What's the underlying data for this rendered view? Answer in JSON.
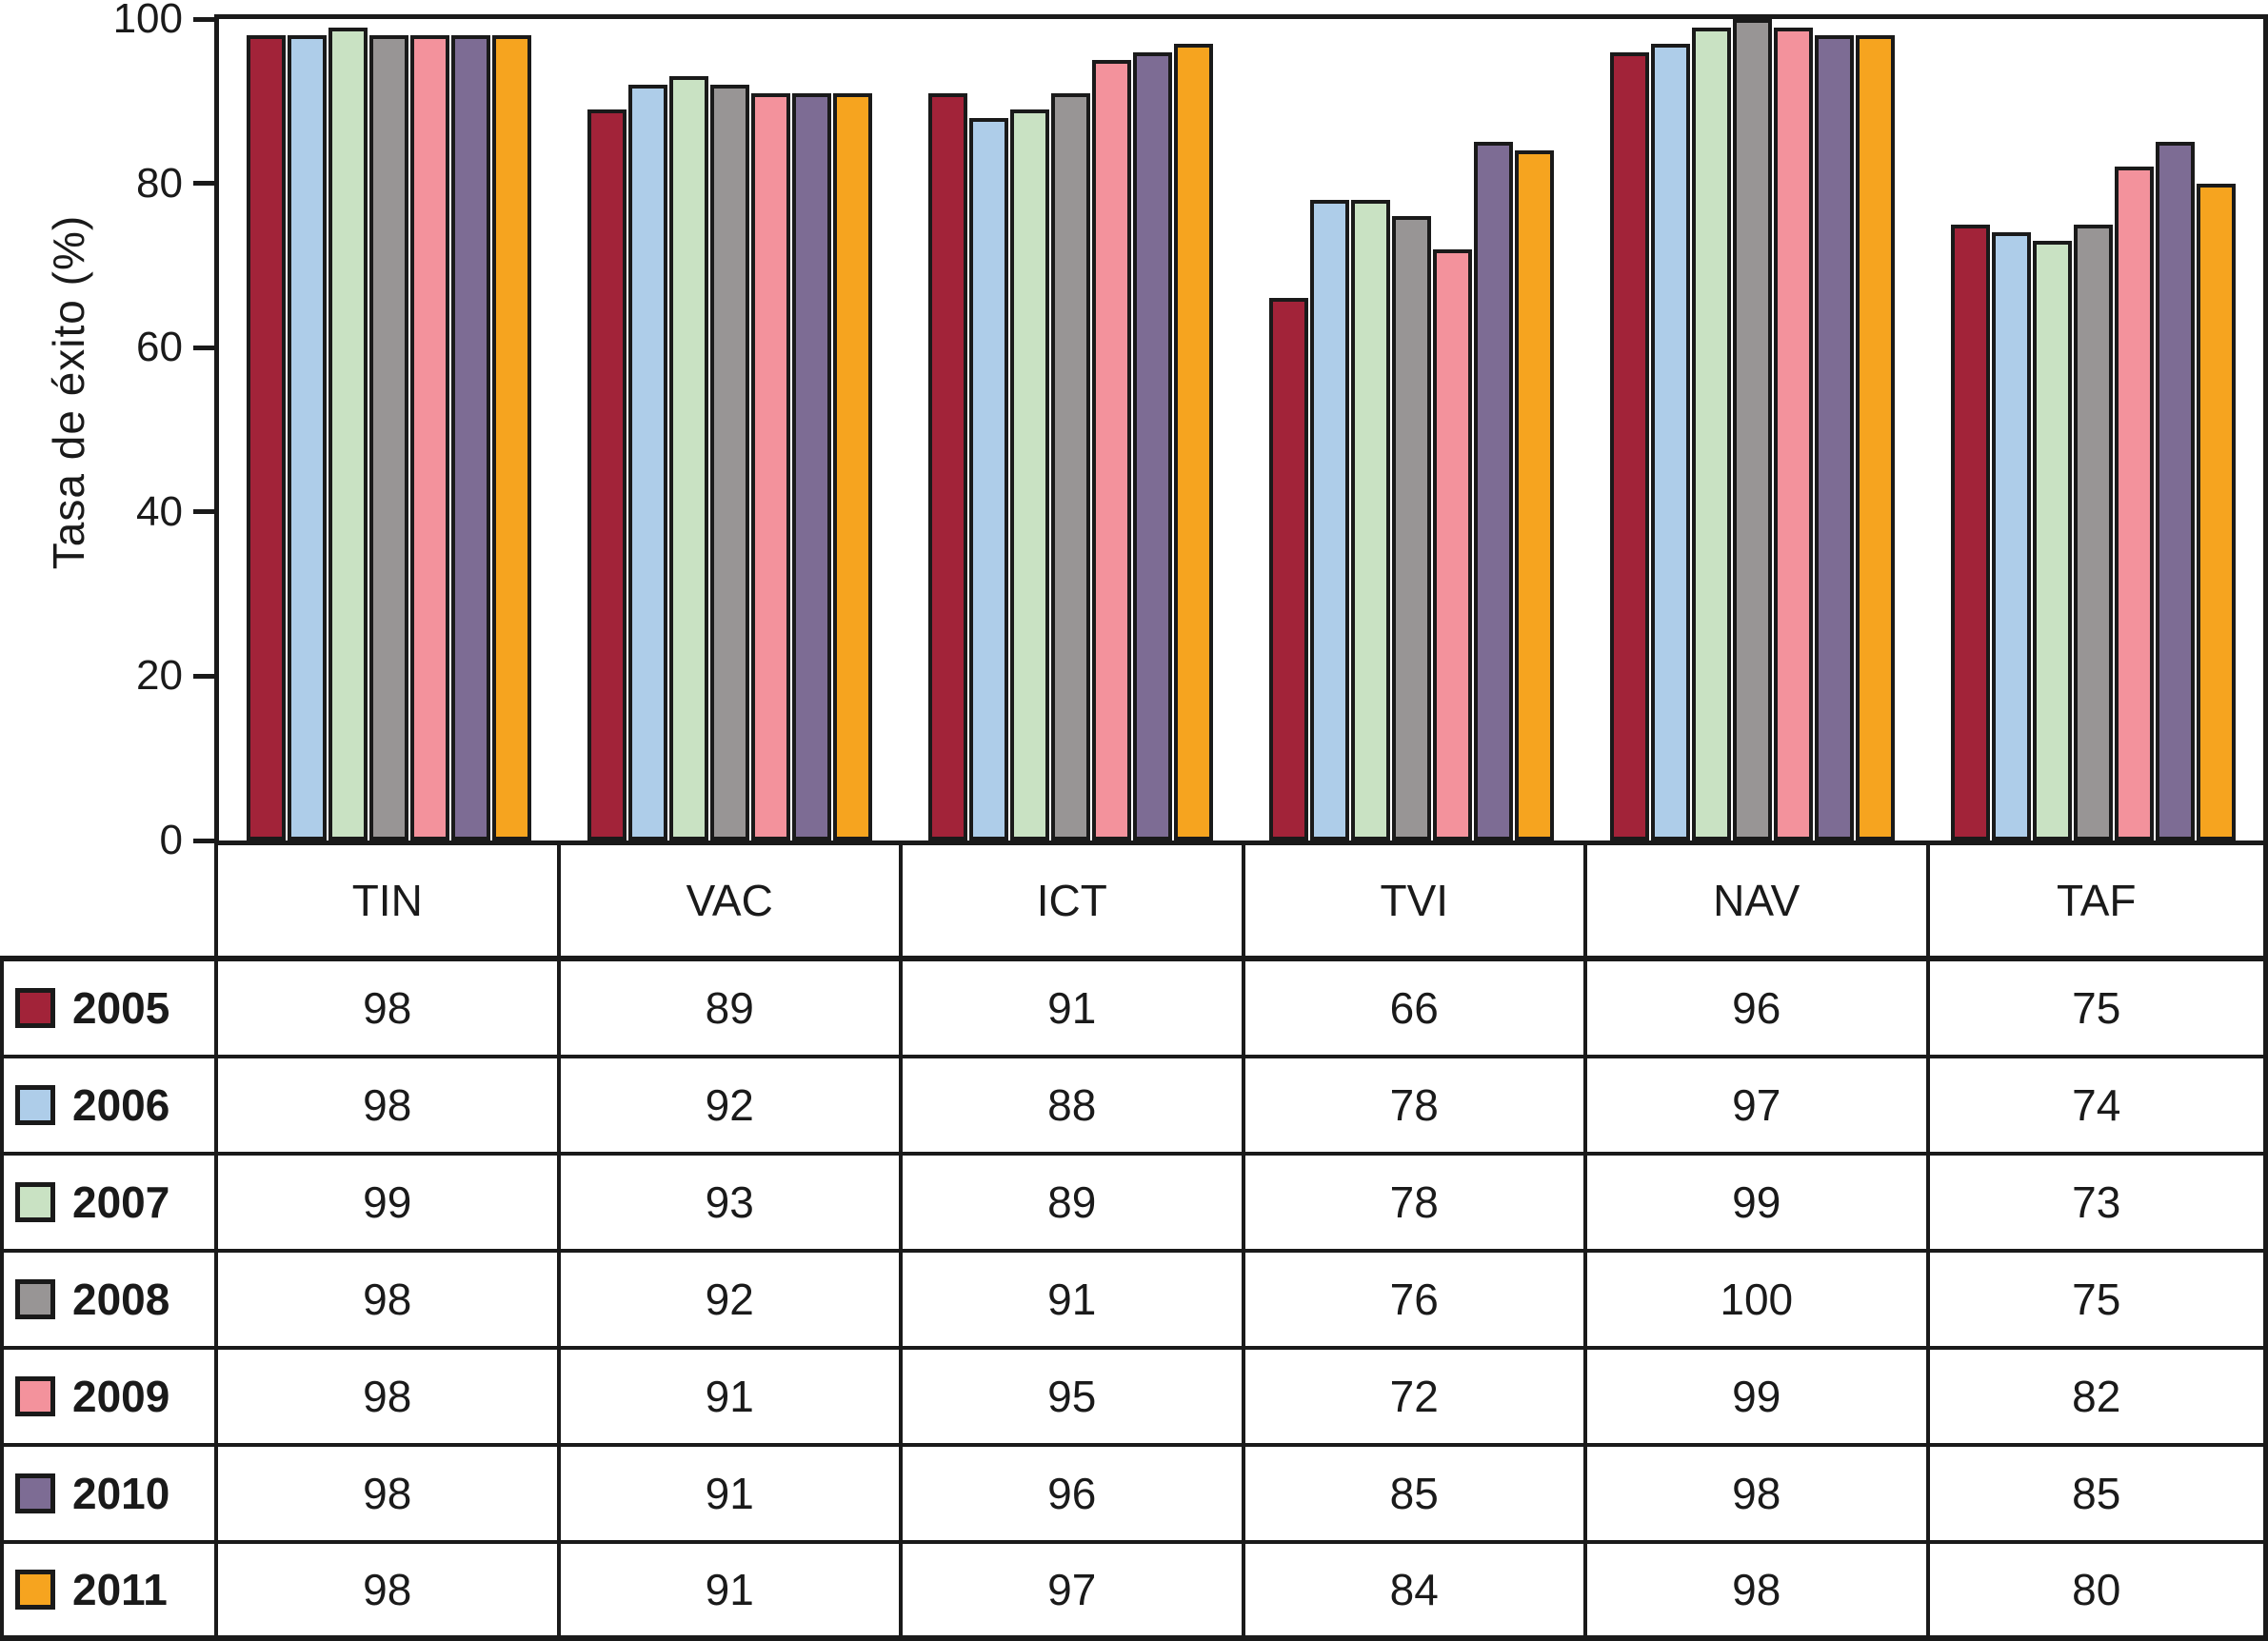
{
  "chart_data": {
    "type": "bar",
    "title": "",
    "xlabel": "",
    "ylabel": "Tasa de éxito (%)",
    "ylim": [
      0,
      100
    ],
    "yticks": [
      0,
      20,
      40,
      60,
      80,
      100
    ],
    "grid": false,
    "legend_position": "table-left-column",
    "categories": [
      "TIN",
      "VAC",
      "ICT",
      "TVI",
      "NAV",
      "TAF"
    ],
    "series": [
      {
        "name": "2005",
        "color": "#A22339",
        "values": [
          98,
          89,
          91,
          66,
          96,
          75
        ]
      },
      {
        "name": "2006",
        "color": "#AECDE9",
        "values": [
          98,
          92,
          88,
          78,
          97,
          74
        ]
      },
      {
        "name": "2007",
        "color": "#C9E2C3",
        "values": [
          99,
          93,
          89,
          78,
          99,
          73
        ]
      },
      {
        "name": "2008",
        "color": "#989595",
        "values": [
          98,
          92,
          91,
          76,
          100,
          75
        ]
      },
      {
        "name": "2009",
        "color": "#F3929C",
        "values": [
          98,
          91,
          95,
          72,
          99,
          82
        ]
      },
      {
        "name": "2010",
        "color": "#7D6C94",
        "values": [
          98,
          91,
          96,
          85,
          98,
          85
        ]
      },
      {
        "name": "2011",
        "color": "#F6A41F",
        "values": [
          98,
          91,
          97,
          84,
          98,
          80
        ]
      }
    ]
  },
  "colors": {
    "frame": "#1a1a1a",
    "background": "#ffffff",
    "text": "#1a1a1a"
  }
}
